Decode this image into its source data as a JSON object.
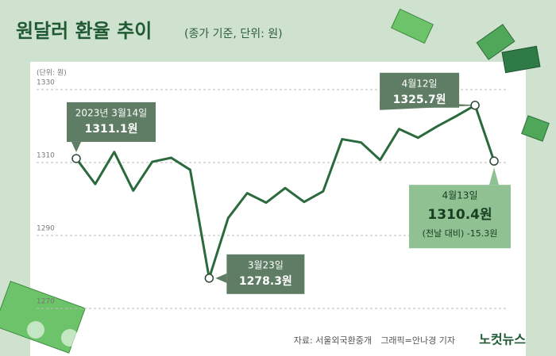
{
  "chart_data": {
    "type": "line",
    "title": "원달러 환율 추이",
    "subtitle": "(종가 기준, 단위: 원)",
    "unit_label": "(단위: 원)",
    "categories": [
      "2023년 3월14일",
      null,
      null,
      null,
      null,
      null,
      null,
      "3월23일",
      null,
      null,
      null,
      null,
      null,
      null,
      null,
      null,
      null,
      null,
      null,
      null,
      null,
      "4월12일",
      "4월13일"
    ],
    "series": [
      {
        "name": "원달러 환율",
        "color": "#2a6a3c",
        "values": [
          1311.1,
          1304.1,
          1312.9,
          1302.3,
          1310.2,
          1311.3,
          1308.0,
          1278.3,
          1294.8,
          1301.6,
          1299.0,
          1303.0,
          1299.2,
          1302.1,
          1316.4,
          1315.5,
          1310.7,
          1319.2,
          1316.8,
          1319.9,
          1322.7,
          1325.7,
          1310.4
        ],
        "value_labels": [
          "1311.1원",
          null,
          null,
          null,
          null,
          null,
          null,
          "1278.3원",
          null,
          null,
          null,
          null,
          null,
          null,
          null,
          null,
          null,
          null,
          null,
          null,
          null,
          "1325.7원",
          "1310.4원"
        ]
      }
    ],
    "annotation": "(전날 대비) -15.3원",
    "ylim": [
      1265,
      1335
    ],
    "yticks": [
      1270,
      1290,
      1310,
      1330
    ],
    "grid": true,
    "source": "자료: 서울외국환중개",
    "credit": "그래픽=안나경 기자",
    "logo": "노컷뉴스"
  }
}
